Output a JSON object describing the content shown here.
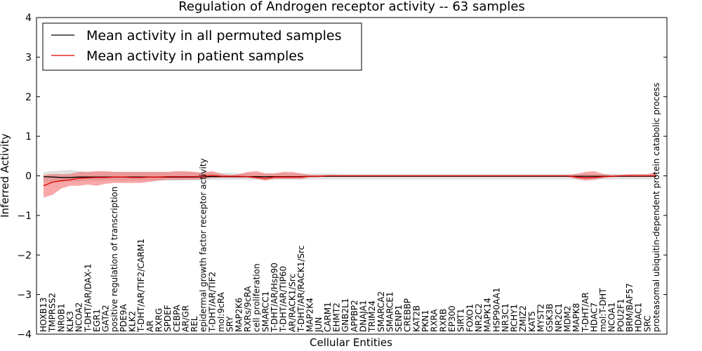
{
  "chart_data": {
    "type": "line",
    "title": "Regulation of Androgen receptor activity -- 63 samples",
    "xlabel": "Cellular Entities",
    "ylabel": "Inferred Activity",
    "ylim": [
      -4,
      4
    ],
    "yticks": [
      "−4",
      "−3",
      "−2",
      "−1",
      "0",
      "1",
      "2",
      "3",
      "4"
    ],
    "legend_position": "top-left",
    "legend": [
      "Mean activity in all permuted samples",
      "Mean activity in patient samples"
    ],
    "colors": {
      "permuted_line": "#000000",
      "permuted_band": "#c8c8c8",
      "patient_line": "#e00000",
      "patient_band": "#f26060"
    },
    "entities": [
      "HOXB13",
      "TMPRSS2",
      "NR0B1",
      "KLK3",
      "NCOA2",
      "T-DHT/AR/DAX-1",
      "EGR1",
      "GATA2",
      "positive regulation of transcription",
      "PDE9A",
      "KLK2",
      "T-DHT/AR/TIF2/CARM1",
      "AR",
      "RXRG",
      "SPDEF",
      "CEBPA",
      "AR/GR",
      "REL",
      "epidermal growth factor receptor activity",
      "T-DHT/AR/TIF2",
      "mol:9cRA",
      "SRY",
      "MAP2K6",
      "RXRs/9cRA",
      "cell proliferation",
      "SMARCC1",
      "T-DHT/AR/Hsp90",
      "T-DHT/AR/TIP60",
      "AR/RACK1/Src",
      "T-DHT/AR/RACK1/Src",
      "MAP2K4",
      "JUN",
      "CARM1",
      "EHMT2",
      "GNB2L1",
      "APPBP2",
      "DNAJA1",
      "TRIM24",
      "SMARCA2",
      "SMARCE1",
      "SENP1",
      "CREBBP",
      "KAT2B",
      "PKN1",
      "RXRA",
      "RXRB",
      "EP300",
      "SIRT1",
      "FOXO1",
      "NR2C2",
      "MAPK14",
      "HSP90AA1",
      "NR3C1",
      "RCHY1",
      "ZMIZ2",
      "KAT5",
      "MYST2",
      "GSK3B",
      "NR2C1",
      "MDM2",
      "MAPK8",
      "T-DHT/AR",
      "HDAC7",
      "mol:T-DHT",
      "NCOA1",
      "POU2F1",
      "BRM/BAF57",
      "HDAC1",
      "SRC",
      "proteasomal ubiquitin-dependent protein catabolic process"
    ],
    "series": [
      {
        "name": "Mean activity in all permuted samples",
        "values": [
          -0.02,
          -0.03,
          -0.04,
          -0.04,
          -0.03,
          -0.03,
          -0.03,
          -0.03,
          -0.03,
          -0.03,
          -0.03,
          -0.03,
          -0.03,
          -0.03,
          -0.03,
          -0.03,
          -0.03,
          -0.03,
          -0.02,
          -0.02,
          -0.02,
          -0.02,
          -0.02,
          -0.02,
          -0.02,
          -0.02,
          -0.02,
          -0.02,
          -0.02,
          -0.02,
          -0.01,
          -0.01,
          -0.01,
          -0.01,
          -0.01,
          -0.01,
          -0.01,
          -0.01,
          -0.01,
          -0.01,
          -0.01,
          -0.01,
          -0.01,
          -0.01,
          -0.01,
          -0.01,
          -0.01,
          -0.01,
          -0.01,
          -0.01,
          -0.01,
          -0.01,
          -0.01,
          -0.01,
          -0.01,
          -0.01,
          -0.01,
          -0.01,
          -0.01,
          -0.01,
          -0.01,
          -0.01,
          -0.01,
          -0.01,
          -0.01,
          -0.01,
          -0.01,
          -0.01,
          -0.01,
          -0.01
        ],
        "lower": [
          -0.18,
          -0.16,
          -0.16,
          -0.15,
          -0.14,
          -0.13,
          -0.13,
          -0.12,
          -0.12,
          -0.12,
          -0.12,
          -0.12,
          -0.12,
          -0.12,
          -0.12,
          -0.12,
          -0.11,
          -0.11,
          -0.11,
          -0.1,
          -0.1,
          -0.1,
          -0.1,
          -0.1,
          -0.1,
          -0.1,
          -0.1,
          -0.1,
          -0.1,
          -0.1,
          -0.09,
          -0.09,
          -0.09,
          -0.09,
          -0.09,
          -0.09,
          -0.09,
          -0.09,
          -0.09,
          -0.09,
          -0.09,
          -0.09,
          -0.09,
          -0.09,
          -0.09,
          -0.09,
          -0.09,
          -0.09,
          -0.09,
          -0.09,
          -0.09,
          -0.09,
          -0.09,
          -0.09,
          -0.09,
          -0.09,
          -0.09,
          -0.09,
          -0.09,
          -0.09,
          -0.09,
          -0.09,
          -0.09,
          -0.09,
          -0.09,
          -0.09,
          -0.09,
          -0.09,
          -0.09,
          -0.09
        ],
        "upper": [
          0.1,
          0.12,
          0.14,
          0.15,
          0.12,
          0.1,
          0.1,
          0.1,
          0.1,
          0.1,
          0.1,
          0.1,
          0.1,
          0.1,
          0.1,
          0.1,
          0.09,
          0.09,
          0.08,
          0.08,
          0.08,
          0.08,
          0.07,
          0.07,
          0.07,
          0.07,
          0.07,
          0.07,
          0.06,
          0.06,
          0.06,
          0.06,
          0.06,
          0.06,
          0.05,
          0.05,
          0.05,
          0.05,
          0.05,
          0.05,
          0.05,
          0.05,
          0.05,
          0.05,
          0.05,
          0.05,
          0.05,
          0.05,
          0.05,
          0.05,
          0.05,
          0.05,
          0.05,
          0.05,
          0.05,
          0.05,
          0.05,
          0.05,
          0.05,
          0.05,
          0.05,
          0.05,
          0.05,
          0.05,
          0.05,
          0.05,
          0.05,
          0.05,
          0.05,
          0.05
        ]
      },
      {
        "name": "Mean activity in patient samples",
        "values": [
          -0.25,
          -0.16,
          -0.12,
          -0.1,
          -0.06,
          -0.05,
          -0.04,
          -0.04,
          -0.03,
          -0.03,
          -0.04,
          -0.04,
          -0.03,
          -0.03,
          -0.02,
          -0.02,
          -0.02,
          -0.02,
          -0.01,
          0.01,
          -0.01,
          -0.01,
          -0.01,
          -0.02,
          -0.04,
          -0.06,
          -0.03,
          -0.03,
          -0.03,
          -0.03,
          -0.01,
          -0.01,
          0.0,
          0.0,
          0.0,
          0.0,
          0.0,
          0.0,
          0.0,
          0.0,
          0.0,
          0.0,
          0.0,
          0.0,
          0.0,
          0.0,
          0.0,
          0.0,
          0.0,
          0.0,
          0.0,
          0.0,
          0.0,
          0.0,
          0.0,
          0.0,
          0.0,
          0.0,
          0.0,
          0.0,
          -0.03,
          -0.05,
          -0.04,
          -0.02,
          -0.01,
          0.0,
          0.0,
          0.0,
          0.0,
          0.0
        ],
        "lower": [
          -0.55,
          -0.48,
          -0.32,
          -0.25,
          -0.25,
          -0.22,
          -0.25,
          -0.2,
          -0.18,
          -0.18,
          -0.18,
          -0.18,
          -0.15,
          -0.12,
          -0.1,
          -0.1,
          -0.1,
          -0.1,
          -0.08,
          -0.05,
          -0.05,
          -0.05,
          -0.05,
          -0.05,
          -0.08,
          -0.12,
          -0.08,
          -0.08,
          -0.08,
          -0.08,
          -0.04,
          -0.03,
          -0.02,
          -0.02,
          -0.02,
          -0.02,
          -0.02,
          -0.02,
          -0.02,
          -0.02,
          -0.02,
          -0.02,
          -0.02,
          -0.02,
          -0.02,
          -0.02,
          -0.02,
          -0.02,
          -0.02,
          -0.02,
          -0.02,
          -0.02,
          -0.02,
          -0.02,
          -0.02,
          -0.02,
          -0.02,
          -0.02,
          -0.02,
          -0.02,
          -0.08,
          -0.12,
          -0.1,
          -0.06,
          -0.03,
          -0.02,
          -0.02,
          -0.02,
          -0.02,
          -0.02
        ],
        "upper": [
          0.02,
          0.05,
          0.04,
          0.05,
          0.1,
          0.1,
          0.12,
          0.12,
          0.1,
          0.1,
          0.1,
          0.1,
          0.1,
          0.1,
          0.1,
          0.12,
          0.12,
          0.1,
          0.08,
          0.12,
          0.05,
          0.02,
          0.04,
          0.1,
          0.12,
          0.06,
          0.06,
          0.1,
          0.1,
          0.06,
          0.02,
          0.02,
          0.02,
          0.02,
          0.02,
          0.02,
          0.02,
          0.02,
          0.02,
          0.02,
          0.02,
          0.02,
          0.02,
          0.02,
          0.02,
          0.02,
          0.02,
          0.02,
          0.02,
          0.02,
          0.02,
          0.02,
          0.02,
          0.02,
          0.02,
          0.02,
          0.02,
          0.02,
          0.02,
          0.02,
          0.05,
          0.1,
          0.12,
          0.05,
          0.02,
          0.02,
          0.04,
          0.04,
          0.04,
          0.1
        ]
      }
    ]
  }
}
